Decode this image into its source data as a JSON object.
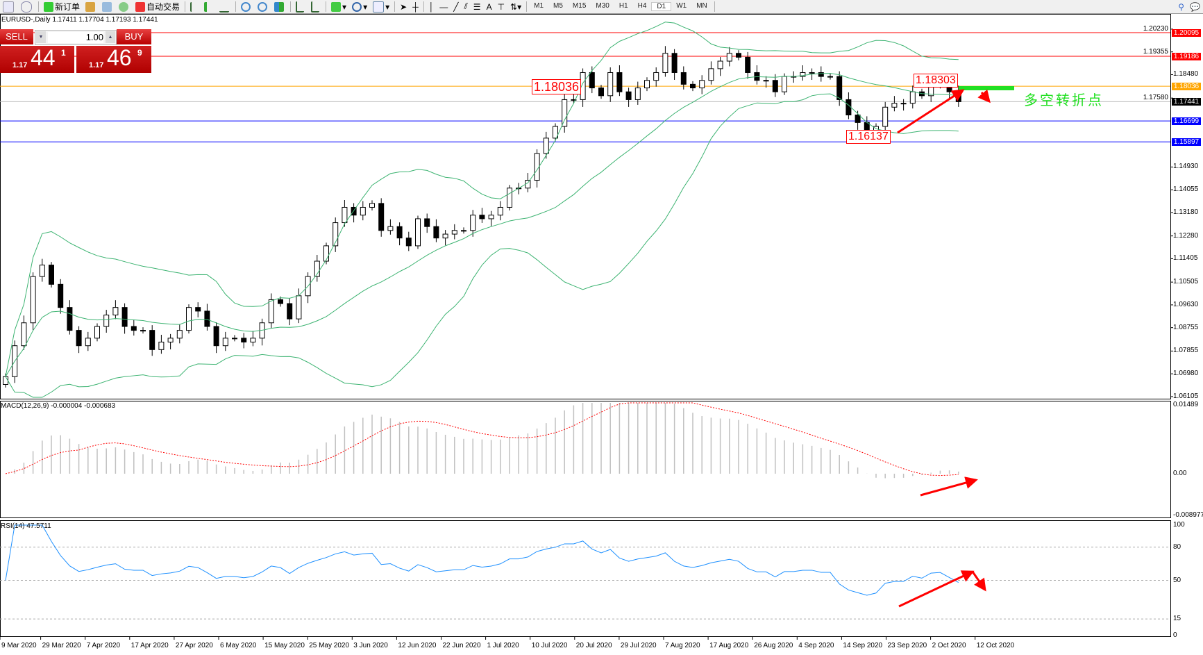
{
  "toolbar": {
    "new_order": "新订单",
    "auto_trading": "自动交易",
    "timeframes": [
      "M1",
      "M5",
      "M15",
      "M30",
      "H1",
      "H4",
      "D1",
      "W1",
      "MN"
    ],
    "active_timeframe": "D1"
  },
  "chart_header": "EURUSD-,Daily  1.17411 1.17704 1.17193 1.17441",
  "trade_panel": {
    "sell_label": "SELL",
    "buy_label": "BUY",
    "lot": "1.00",
    "sell_prefix": "1.17",
    "sell_big": "44",
    "sell_sup": "1",
    "buy_prefix": "1.17",
    "buy_big": "46",
    "buy_sup": "9"
  },
  "annotations": {
    "label_1": "1.18036",
    "label_2": "1.18303",
    "label_3": "1.16137",
    "note": "多空转折点"
  },
  "colors": {
    "bull": "#ffffff",
    "bear": "#000000",
    "bands": "#3cb371",
    "macd_hist": "#c0c0c0",
    "macd_signal": "#ff0000",
    "rsi": "#1e90ff",
    "arrow": "#ff0000",
    "note": "#22e022"
  },
  "chart_data": {
    "type": "candlestick",
    "symbol": "EURUSD-",
    "timeframe": "Daily",
    "ylim": [
      1.06105,
      1.2023
    ],
    "y_ticks": [
      "1.20230",
      "1.19355",
      "1.18480",
      "1.17580",
      "1.14930",
      "1.14055",
      "1.13180",
      "1.12280",
      "1.11405",
      "1.10505",
      "1.09630",
      "1.08755",
      "1.07855",
      "1.06980",
      "1.06105"
    ],
    "closes": [
      1.0687,
      1.0806,
      1.0894,
      1.1072,
      1.1116,
      1.1042,
      1.0953,
      1.0865,
      1.0806,
      1.0835,
      1.088,
      1.0924,
      1.0953,
      1.088,
      1.0865,
      1.0865,
      1.0791,
      1.082,
      1.0835,
      1.0865,
      1.0953,
      1.0939,
      1.088,
      1.0806,
      1.0835,
      1.0835,
      1.082,
      1.0835,
      1.0894,
      1.0983,
      1.0968,
      1.0909,
      1.0998,
      1.1072,
      1.1131,
      1.119,
      1.1279,
      1.1338,
      1.1308,
      1.1338,
      1.1353,
      1.1249,
      1.1264,
      1.122,
      1.119,
      1.1294,
      1.1264,
      1.122,
      1.1235,
      1.1249,
      1.1249,
      1.1308,
      1.1294,
      1.1308,
      1.1338,
      1.1412,
      1.1412,
      1.1442,
      1.1545,
      1.1604,
      1.1649,
      1.1752,
      1.1752,
      1.1856,
      1.1797,
      1.1767,
      1.1856,
      1.1782,
      1.1752,
      1.1797,
      1.1826,
      1.1856,
      1.193,
      1.1856,
      1.1811,
      1.1797,
      1.1826,
      1.1871,
      1.19,
      1.193,
      1.1915,
      1.1856,
      1.1826,
      1.1826,
      1.1782,
      1.1841,
      1.1841,
      1.1856,
      1.1856,
      1.1841,
      1.1841,
      1.1752,
      1.1693,
      1.1664,
      1.1634,
      1.1649,
      1.1723,
      1.1738,
      1.1738,
      1.1782,
      1.1767,
      1.1811,
      1.1817,
      1.1782,
      1.17441
    ],
    "hlines": [
      {
        "price": "1.20095",
        "color": "#ff0000"
      },
      {
        "price": "1.19186",
        "color": "#ff0000"
      },
      {
        "price": "1.18036",
        "color": "#ffa500"
      },
      {
        "price": "1.17441",
        "color": "#000000"
      },
      {
        "price": "1.16699",
        "color": "#0000ff"
      },
      {
        "price": "1.15897",
        "color": "#0000ff"
      }
    ],
    "dates": [
      "9 Mar 2020",
      "29 Mar 2020",
      "7 Apr 2020",
      "17 Apr 2020",
      "27 Apr 2020",
      "6 May 2020",
      "15 May 2020",
      "25 May 2020",
      "3 Jun 2020",
      "12 Jun 2020",
      "22 Jun 2020",
      "1 Jul 2020",
      "10 Jul 2020",
      "20 Jul 2020",
      "29 Jul 2020",
      "7 Aug 2020",
      "17 Aug 2020",
      "26 Aug 2020",
      "4 Sep 2020",
      "14 Sep 2020",
      "23 Sep 2020",
      "2 Oct 2020",
      "12 Oct 2020"
    ],
    "indicators": {
      "bollinger": {
        "period": 20,
        "deviation": 2
      },
      "macd": {
        "title": "MACD(12,26,9) -0.000004 -0.000683",
        "ticks": [
          "0.01489",
          "0.00",
          "-0.008977"
        ],
        "ylim": [
          -0.008977,
          0.01489
        ]
      },
      "rsi": {
        "title": "RSI(14) 47.5711",
        "ticks": [
          "100",
          "80",
          "50",
          "15",
          "0"
        ],
        "levels": [
          80,
          50,
          15
        ],
        "ylim": [
          0,
          100
        ]
      }
    }
  }
}
